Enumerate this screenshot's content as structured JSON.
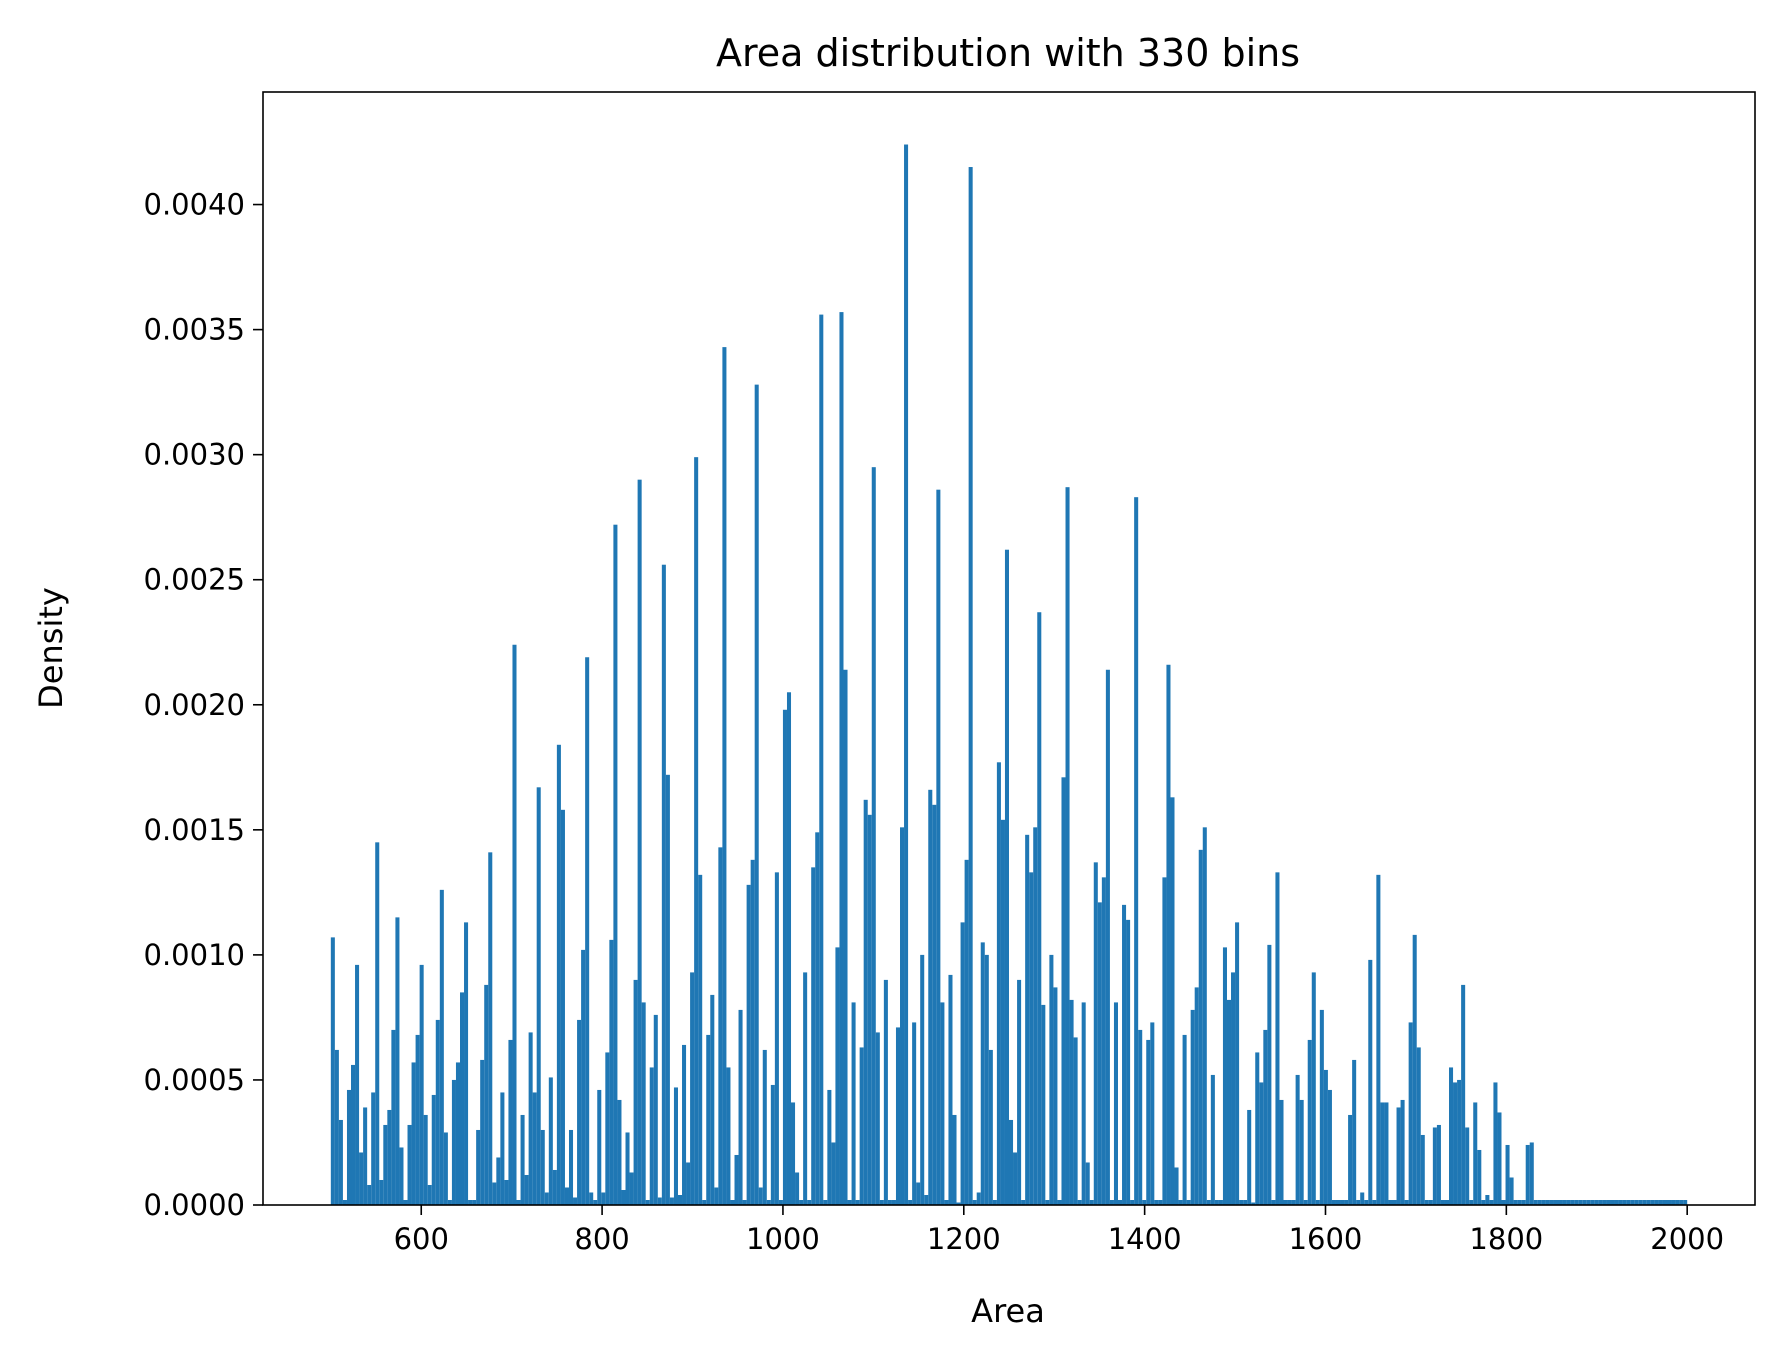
{
  "chart_data": {
    "type": "bar",
    "title": "Area distribution with 330 bins",
    "xlabel": "Area",
    "ylabel": "Density",
    "xlim": [
      425,
      2075
    ],
    "ylim": [
      0,
      0.00445
    ],
    "xticks": [
      {
        "value": 600,
        "label": "600"
      },
      {
        "value": 800,
        "label": "800"
      },
      {
        "value": 1000,
        "label": "1000"
      },
      {
        "value": 1200,
        "label": "1200"
      },
      {
        "value": 1400,
        "label": "1400"
      },
      {
        "value": 1600,
        "label": "1600"
      },
      {
        "value": 1800,
        "label": "1800"
      },
      {
        "value": 2000,
        "label": "2000"
      }
    ],
    "yticks": [
      {
        "value": 0,
        "label": "0.0000"
      },
      {
        "value": 0.0005,
        "label": "0.0005"
      },
      {
        "value": 0.001,
        "label": "0.0010"
      },
      {
        "value": 0.0015,
        "label": "0.0015"
      },
      {
        "value": 0.002,
        "label": "0.0020"
      },
      {
        "value": 0.0025,
        "label": "0.0025"
      },
      {
        "value": 0.003,
        "label": "0.0030"
      },
      {
        "value": 0.0035,
        "label": "0.0035"
      },
      {
        "value": 0.004,
        "label": "0.0040"
      }
    ],
    "grid": false,
    "legend": "none",
    "bar_color": "#1f77b4",
    "bins": {
      "start": 500,
      "end": 2000,
      "count": 330
    },
    "values": [
      0.00107,
      0.00062,
      0.00034,
      2e-05,
      0.00046,
      0.00056,
      0.00096,
      0.00021,
      0.00039,
      8e-05,
      0.00045,
      0.00145,
      0.0001,
      0.00032,
      0.00038,
      0.0007,
      0.00115,
      0.00023,
      2e-05,
      0.00032,
      0.00057,
      0.00068,
      0.00096,
      0.00036,
      8e-05,
      0.00044,
      0.00074,
      0.00126,
      0.00029,
      2e-05,
      0.0005,
      0.00057,
      0.00085,
      0.00113,
      2e-05,
      2e-05,
      0.0003,
      0.00058,
      0.00088,
      0.00141,
      9e-05,
      0.00019,
      0.00045,
      0.0001,
      0.00066,
      0.00224,
      2e-05,
      0.00036,
      0.00012,
      0.00069,
      0.00045,
      0.00167,
      0.0003,
      5e-05,
      0.00051,
      0.00014,
      0.00184,
      0.00158,
      7e-05,
      0.0003,
      3e-05,
      0.00074,
      0.00102,
      0.00219,
      5e-05,
      2e-05,
      0.00046,
      5e-05,
      0.00061,
      0.00106,
      0.00272,
      0.00042,
      6e-05,
      0.00029,
      0.00013,
      0.0009,
      0.0029,
      0.00081,
      2e-05,
      0.00055,
      0.00076,
      3e-05,
      0.00256,
      0.00172,
      3e-05,
      0.00047,
      4e-05,
      0.00064,
      0.00017,
      0.00093,
      0.00299,
      0.00132,
      2e-05,
      0.00068,
      0.00084,
      7e-05,
      0.00143,
      0.00343,
      0.00055,
      2e-05,
      0.0002,
      0.00078,
      2e-05,
      0.00128,
      0.00138,
      0.00328,
      7e-05,
      0.00062,
      2e-05,
      0.00048,
      0.00133,
      2e-05,
      0.00198,
      0.00205,
      0.00041,
      0.00013,
      2e-05,
      0.00093,
      2e-05,
      0.00135,
      0.00149,
      0.00356,
      2e-05,
      0.00046,
      0.00025,
      0.00103,
      0.00357,
      0.00214,
      2e-05,
      0.00081,
      2e-05,
      0.00063,
      0.00162,
      0.00156,
      0.00295,
      0.00069,
      2e-05,
      0.0009,
      2e-05,
      2e-05,
      0.00071,
      0.00151,
      0.00424,
      2e-05,
      0.00073,
      9e-05,
      0.001,
      4e-05,
      0.00166,
      0.0016,
      0.00286,
      0.00081,
      2e-05,
      0.00092,
      0.00036,
      1e-05,
      0.00113,
      0.00138,
      0.00415,
      2e-05,
      5e-05,
      0.00105,
      0.001,
      0.00062,
      2e-05,
      0.00177,
      0.00154,
      0.00262,
      0.00034,
      0.00021,
      0.0009,
      2e-05,
      0.00148,
      0.00133,
      0.00151,
      0.00237,
      0.0008,
      2e-05,
      0.001,
      0.00087,
      2e-05,
      0.00171,
      0.00287,
      0.00082,
      0.00067,
      2e-05,
      0.00081,
      0.00017,
      2e-05,
      0.00137,
      0.00121,
      0.00131,
      0.00214,
      2e-05,
      0.00081,
      2e-05,
      0.0012,
      0.00114,
      2e-05,
      0.00283,
      0.0007,
      2e-05,
      0.00066,
      0.00073,
      2e-05,
      2e-05,
      0.00131,
      0.00216,
      0.00163,
      0.00015,
      2e-05,
      0.00068,
      2e-05,
      0.00078,
      0.00087,
      0.00142,
      0.00151,
      2e-05,
      0.00052,
      2e-05,
      2e-05,
      0.00103,
      0.00082,
      0.00093,
      0.00113,
      2e-05,
      2e-05,
      0.00038,
      1e-05,
      0.00061,
      0.00049,
      0.0007,
      0.00104,
      2e-05,
      0.00133,
      0.00042,
      2e-05,
      2e-05,
      2e-05,
      0.00052,
      0.00042,
      2e-05,
      0.00066,
      0.00093,
      2e-05,
      0.00078,
      0.00054,
      0.00046,
      2e-05,
      2e-05,
      2e-05,
      2e-05,
      0.00036,
      0.00058,
      2e-05,
      5e-05,
      2e-05,
      0.00098,
      2e-05,
      0.00132,
      0.00041,
      0.00041,
      2e-05,
      2e-05,
      0.00039,
      0.00042,
      2e-05,
      0.00073,
      0.00108,
      0.00063,
      0.00028,
      2e-05,
      2e-05,
      0.00031,
      0.00032,
      2e-05,
      2e-05,
      0.00055,
      0.00049,
      0.0005,
      0.00088,
      0.00031,
      2e-05,
      0.00041,
      0.00022,
      2e-05,
      4e-05,
      2e-05,
      0.00049,
      0.00037,
      2e-05,
      0.00024,
      0.00011,
      2e-05,
      2e-05,
      2e-05,
      0.00024,
      0.00025,
      2e-05,
      2e-05,
      2e-05,
      2e-05,
      2e-05,
      2e-05,
      2e-05,
      2e-05,
      2e-05,
      2e-05,
      2e-05,
      2e-05,
      2e-05,
      2e-05,
      2e-05,
      2e-05,
      2e-05,
      2e-05,
      2e-05,
      2e-05,
      2e-05,
      2e-05,
      2e-05,
      2e-05,
      2e-05,
      2e-05,
      2e-05,
      2e-05,
      2e-05,
      2e-05,
      2e-05,
      2e-05,
      2e-05,
      2e-05,
      2e-05,
      2e-05,
      2e-05,
      2e-05
    ]
  }
}
